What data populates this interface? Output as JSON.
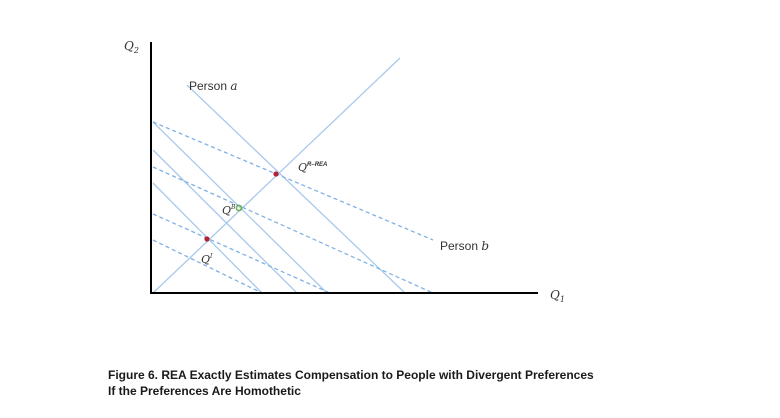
{
  "axes": {
    "y_label": "Q",
    "y_sub": "2",
    "x_label": "Q",
    "x_sub": "1"
  },
  "labels": {
    "person_a_prefix": "Person ",
    "person_a_var": "a",
    "person_b_prefix": "Person ",
    "person_b_var": "b",
    "q_r_rea_base": "Q",
    "q_r_rea_sup": "R–REA",
    "q_b_base": "Q",
    "q_b_sup": "B",
    "q_i_base": "Q",
    "q_i_sup": "I"
  },
  "points": {
    "q_r_rea_color": "#b22234",
    "q_b_color": "#6ab04c",
    "q_i_color": "#b22234"
  },
  "caption": {
    "line1": "Figure 6.  REA Exactly Estimates Compensation to People with Divergent Preferences",
    "line2": "If the Preferences Are Homothetic"
  }
}
